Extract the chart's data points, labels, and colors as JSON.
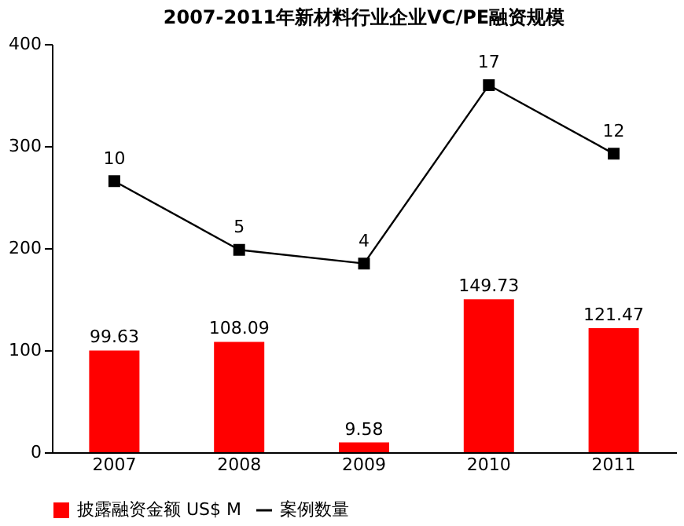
{
  "chart_data": {
    "type": "bar",
    "title": "2007-2011年新材料行业企业VC/PE融资规模",
    "categories": [
      "2007",
      "2008",
      "2009",
      "2010",
      "2011"
    ],
    "series": [
      {
        "name": "披露融资金额 US$ M",
        "color": "#ff0000",
        "values": [
          99.63,
          108.09,
          9.58,
          149.73,
          121.47
        ]
      },
      {
        "name": "案例数量",
        "type": "line",
        "axis": "y2",
        "color": "#000000",
        "marker": "square",
        "values": [
          10,
          5,
          4,
          17,
          12
        ]
      }
    ],
    "ylim": [
      0,
      400
    ],
    "yticks": [
      0,
      100,
      200,
      300,
      400
    ],
    "y2lim": [
      -9.75,
      20
    ],
    "tick_labels": "y",
    "data_labels": true,
    "grid": false,
    "legend": "bottom"
  }
}
